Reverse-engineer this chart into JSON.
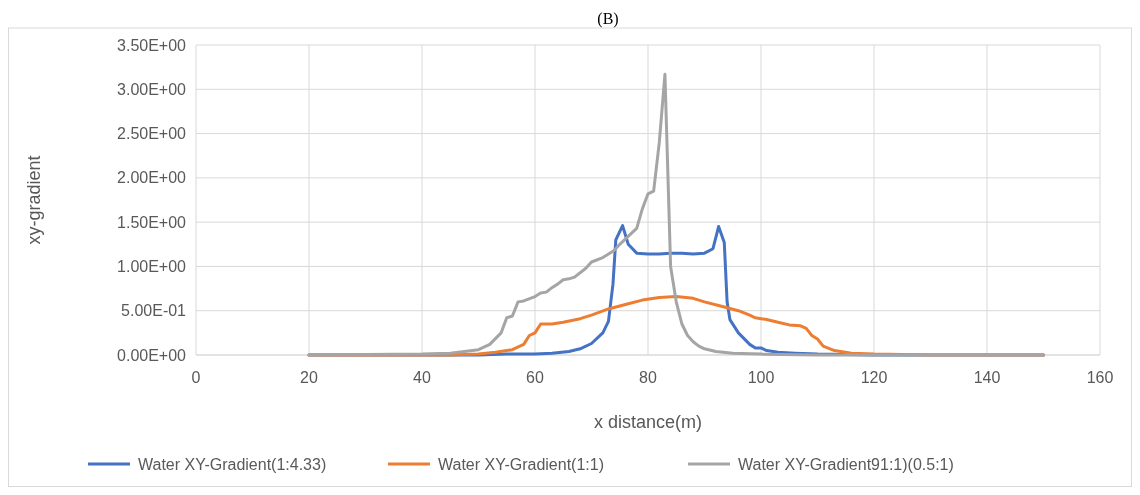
{
  "chart_data": {
    "type": "line",
    "title": "(B)",
    "xlabel": "x distance(m)",
    "ylabel": "xy-gradient",
    "xlim": [
      0,
      160
    ],
    "xticks": [
      0,
      20,
      40,
      60,
      80,
      100,
      120,
      140,
      160
    ],
    "ylim": [
      0,
      3.5
    ],
    "yticks": [
      {
        "value": 0,
        "label": "0.00E+00"
      },
      {
        "value": 0.5,
        "label": "5.00E-01"
      },
      {
        "value": 1,
        "label": "1.00E+00"
      },
      {
        "value": 1.5,
        "label": "1.50E+00"
      },
      {
        "value": 2,
        "label": "2.00E+00"
      },
      {
        "value": 2.5,
        "label": "2.50E+00"
      },
      {
        "value": 3,
        "label": "3.00E+00"
      },
      {
        "value": 3.5,
        "label": "3.50E+00"
      }
    ],
    "grid": true,
    "legend": "bottom",
    "marker": "none",
    "line_style": "solid",
    "series": [
      {
        "name": "Water XY-Gradient(1:4.33)",
        "color": "#4472c4",
        "x": [
          20,
          40,
          50,
          55,
          60,
          63,
          66,
          68,
          70,
          72,
          73,
          73.8,
          74.3,
          75.5,
          76.5,
          78,
          80,
          82,
          84,
          86,
          88,
          90,
          91.5,
          92.5,
          93.5,
          94,
          94.5,
          96,
          98,
          99,
          100,
          101,
          103,
          106,
          110,
          120,
          150
        ],
        "values": [
          0,
          0,
          0,
          0.01,
          0.01,
          0.02,
          0.04,
          0.07,
          0.13,
          0.25,
          0.38,
          0.8,
          1.3,
          1.46,
          1.25,
          1.15,
          1.14,
          1.14,
          1.15,
          1.15,
          1.14,
          1.15,
          1.2,
          1.45,
          1.27,
          0.6,
          0.4,
          0.25,
          0.12,
          0.08,
          0.08,
          0.05,
          0.03,
          0.02,
          0.01,
          0,
          0
        ]
      },
      {
        "name": "Water XY-Gradient(1:1)",
        "color": "#ed7d31",
        "x": [
          20,
          45,
          50,
          53,
          56,
          58,
          59,
          60,
          61,
          63,
          65,
          68,
          70,
          73,
          76,
          79,
          82,
          85,
          88,
          90,
          93,
          96,
          98,
          99,
          101,
          103,
          105,
          107,
          108,
          109,
          110,
          111,
          113,
          116,
          120,
          130,
          150
        ],
        "values": [
          0,
          0,
          0.01,
          0.03,
          0.06,
          0.12,
          0.22,
          0.25,
          0.35,
          0.35,
          0.37,
          0.41,
          0.45,
          0.52,
          0.57,
          0.62,
          0.65,
          0.66,
          0.64,
          0.6,
          0.55,
          0.5,
          0.45,
          0.42,
          0.4,
          0.37,
          0.34,
          0.33,
          0.3,
          0.22,
          0.18,
          0.1,
          0.05,
          0.02,
          0.01,
          0,
          0
        ]
      },
      {
        "name": "Water XY-Gradient91:1)(0.5:1)",
        "color": "#a5a5a5",
        "x": [
          20,
          40,
          45,
          50,
          52,
          54,
          55,
          56,
          57,
          58,
          60,
          61,
          62,
          63,
          64,
          65,
          66,
          67,
          69,
          70,
          72,
          74,
          75,
          77,
          78,
          79,
          80,
          81,
          82,
          83,
          84,
          85,
          86,
          87,
          88,
          89,
          90,
          92,
          95,
          100,
          110,
          150
        ],
        "values": [
          0,
          0.01,
          0.02,
          0.06,
          0.12,
          0.25,
          0.42,
          0.44,
          0.6,
          0.61,
          0.66,
          0.7,
          0.71,
          0.76,
          0.8,
          0.85,
          0.86,
          0.88,
          0.98,
          1.05,
          1.1,
          1.18,
          1.25,
          1.37,
          1.43,
          1.65,
          1.82,
          1.85,
          2.4,
          3.17,
          1.0,
          0.6,
          0.35,
          0.22,
          0.15,
          0.1,
          0.07,
          0.04,
          0.02,
          0.01,
          0,
          0
        ]
      }
    ]
  }
}
